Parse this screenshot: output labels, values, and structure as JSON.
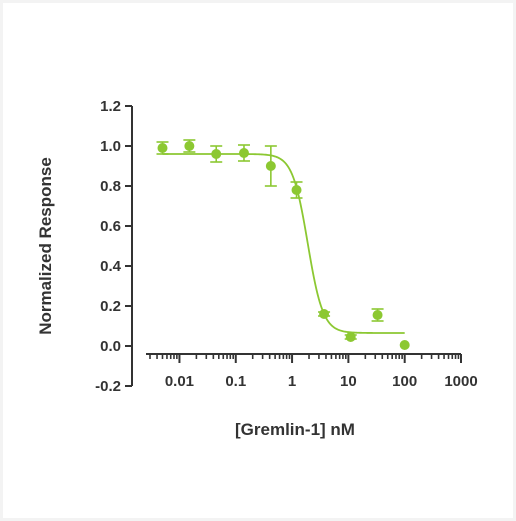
{
  "chart_data": {
    "type": "scatter",
    "title": "",
    "xlabel": "[Gremlin-1] nM",
    "ylabel": "Normalized Response",
    "x_scale": "log",
    "xlim": [
      0.003,
      1000
    ],
    "ylim": [
      -0.2,
      1.2
    ],
    "x_ticks": [
      0.01,
      0.1,
      1,
      10,
      100,
      1000
    ],
    "x_tick_labels": [
      "0.01",
      "0.1",
      "1",
      "10",
      "100",
      "1000"
    ],
    "y_ticks": [
      -0.2,
      0.0,
      0.2,
      0.4,
      0.6,
      0.8,
      1.0,
      1.2
    ],
    "y_tick_labels": [
      "-0.2",
      "0.0",
      "0.2",
      "0.4",
      "0.6",
      "0.8",
      "1.0",
      "1.2"
    ],
    "grid": false,
    "color": "#8cc832",
    "points": [
      {
        "x": 0.005,
        "y": 0.99,
        "err": 0.03
      },
      {
        "x": 0.015,
        "y": 1.0,
        "err": 0.03
      },
      {
        "x": 0.045,
        "y": 0.96,
        "err": 0.04
      },
      {
        "x": 0.14,
        "y": 0.965,
        "err": 0.04
      },
      {
        "x": 0.42,
        "y": 0.9,
        "err": 0.1
      },
      {
        "x": 1.2,
        "y": 0.78,
        "err": 0.04
      },
      {
        "x": 3.7,
        "y": 0.16,
        "err": 0.01
      },
      {
        "x": 11,
        "y": 0.045,
        "err": 0.01
      },
      {
        "x": 33,
        "y": 0.155,
        "err": 0.03
      },
      {
        "x": 100,
        "y": 0.005,
        "err": 0.005
      }
    ],
    "fit": {
      "model": "4PL",
      "top": 0.96,
      "bottom": 0.065,
      "ic50": 1.9,
      "hill": 3.2
    }
  }
}
